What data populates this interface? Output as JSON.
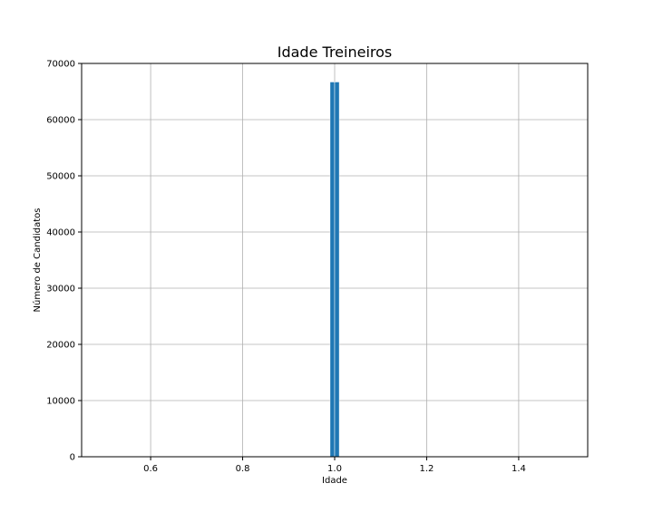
{
  "chart_data": {
    "type": "bar",
    "title": "Idade Treineiros",
    "xlabel": "Idade",
    "ylabel": "Número de Candidatos",
    "xlim": [
      0.45,
      1.55
    ],
    "ylim": [
      0,
      70000
    ],
    "x_ticks": [
      0.6,
      0.8,
      1.0,
      1.2,
      1.4
    ],
    "x_tick_labels": [
      "0.6",
      "0.8",
      "1.0",
      "1.2",
      "1.4"
    ],
    "y_ticks": [
      0,
      10000,
      20000,
      30000,
      40000,
      50000,
      60000,
      70000
    ],
    "y_tick_labels": [
      "0",
      "10000",
      "20000",
      "30000",
      "40000",
      "50000",
      "60000",
      "70000"
    ],
    "grid": true,
    "bars": [
      {
        "x_start": 0.99,
        "x_end": 1.0,
        "value": 66700
      },
      {
        "x_start": 1.0,
        "x_end": 1.01,
        "value": 66700
      }
    ],
    "colors": {
      "bar": "#1f77b4",
      "bar_edge": "#ffffff",
      "grid": "#b0b0b0",
      "axes": "#000000"
    }
  }
}
